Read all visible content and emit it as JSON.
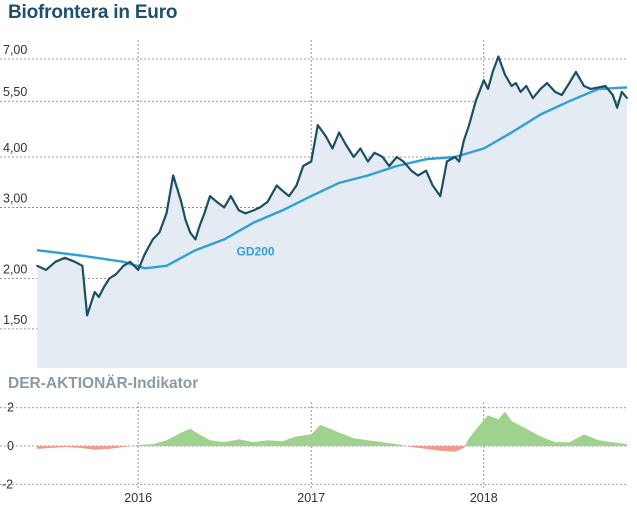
{
  "chart_data": [
    {
      "type": "line",
      "title": "Biofrontera in Euro",
      "y_scale": "log",
      "ylim": [
        1.2,
        7.8
      ],
      "y_ticks": [
        "7,00",
        "5,50",
        "4,00",
        "3,00",
        "2,00",
        "1,50"
      ],
      "y_tick_values": [
        7.0,
        5.5,
        4.0,
        3.0,
        2.0,
        1.5
      ],
      "x_ticks": [
        "2016",
        "2017",
        "2018"
      ],
      "grid": true,
      "series": [
        {
          "name": "price",
          "color": "#1b4f63",
          "x": [
            "2015-06-01",
            "2015-06-20",
            "2015-07-10",
            "2015-07-30",
            "2015-08-20",
            "2015-09-05",
            "2015-09-15",
            "2015-10-01",
            "2015-10-10",
            "2015-10-20",
            "2015-11-01",
            "2015-11-15",
            "2015-12-01",
            "2015-12-15",
            "2016-01-01",
            "2016-01-15",
            "2016-02-01",
            "2016-02-15",
            "2016-03-01",
            "2016-03-15",
            "2016-04-01",
            "2016-04-10",
            "2016-04-20",
            "2016-05-01",
            "2016-05-10",
            "2016-05-20",
            "2016-06-01",
            "2016-06-15",
            "2016-07-01",
            "2016-07-15",
            "2016-08-01",
            "2016-08-15",
            "2016-09-01",
            "2016-09-15",
            "2016-10-01",
            "2016-10-20",
            "2016-11-01",
            "2016-11-15",
            "2016-12-01",
            "2016-12-15",
            "2017-01-01",
            "2017-01-15",
            "2017-02-01",
            "2017-02-15",
            "2017-03-01",
            "2017-03-15",
            "2017-04-01",
            "2017-04-15",
            "2017-05-01",
            "2017-05-15",
            "2017-06-01",
            "2017-06-15",
            "2017-07-01",
            "2017-07-15",
            "2017-08-01",
            "2017-08-15",
            "2017-09-01",
            "2017-09-15",
            "2017-10-01",
            "2017-10-15",
            "2017-11-01",
            "2017-11-10",
            "2017-11-20",
            "2017-12-01",
            "2017-12-15",
            "2018-01-01",
            "2018-01-10",
            "2018-01-20",
            "2018-02-01",
            "2018-02-15",
            "2018-03-01",
            "2018-03-10",
            "2018-03-20",
            "2018-04-01",
            "2018-04-15",
            "2018-05-01",
            "2018-05-15",
            "2018-06-01",
            "2018-06-15",
            "2018-07-01",
            "2018-07-15",
            "2018-08-01",
            "2018-08-15",
            "2018-09-01",
            "2018-09-15",
            "2018-10-01",
            "2018-10-10",
            "2018-10-20",
            "2018-10-31"
          ],
          "values": [
            2.15,
            2.1,
            2.2,
            2.25,
            2.2,
            2.15,
            1.62,
            1.85,
            1.8,
            1.9,
            2.0,
            2.05,
            2.15,
            2.2,
            2.1,
            2.3,
            2.5,
            2.6,
            2.9,
            3.6,
            3.1,
            2.8,
            2.6,
            2.5,
            2.7,
            2.9,
            3.2,
            3.1,
            3.0,
            3.2,
            2.95,
            2.9,
            2.95,
            3.0,
            3.1,
            3.4,
            3.3,
            3.2,
            3.4,
            3.8,
            3.9,
            4.8,
            4.5,
            4.2,
            4.6,
            4.3,
            4.0,
            4.2,
            3.9,
            4.1,
            4.0,
            3.8,
            4.0,
            3.9,
            3.7,
            3.6,
            3.7,
            3.4,
            3.2,
            3.9,
            4.0,
            3.9,
            4.4,
            4.8,
            5.5,
            6.2,
            5.9,
            6.5,
            7.1,
            6.4,
            6.0,
            6.1,
            5.8,
            6.0,
            5.6,
            5.9,
            6.1,
            5.8,
            5.7,
            6.1,
            6.5,
            6.0,
            5.9,
            5.95,
            6.0,
            5.7,
            5.3,
            5.8,
            5.6
          ]
        },
        {
          "name": "GD200",
          "color": "#2fa0d6",
          "x": [
            "2015-06-01",
            "2015-09-01",
            "2015-12-01",
            "2016-01-15",
            "2016-03-01",
            "2016-05-01",
            "2016-07-01",
            "2016-09-01",
            "2016-11-01",
            "2017-01-01",
            "2017-03-01",
            "2017-05-01",
            "2017-07-01",
            "2017-09-01",
            "2017-11-01",
            "2018-01-01",
            "2018-03-01",
            "2018-05-01",
            "2018-07-01",
            "2018-09-01",
            "2018-10-31"
          ],
          "values": [
            2.35,
            2.28,
            2.2,
            2.12,
            2.15,
            2.35,
            2.5,
            2.75,
            2.95,
            3.2,
            3.45,
            3.6,
            3.8,
            3.95,
            4.0,
            4.2,
            4.6,
            5.1,
            5.5,
            5.9,
            5.95
          ]
        }
      ],
      "annotations": [
        {
          "text": "GD200"
        }
      ]
    },
    {
      "type": "area",
      "title": "DER-AKTIONÄR-Indikator",
      "ylim": [
        -2.3,
        2.3
      ],
      "y_ticks": [
        "2",
        "0",
        "-2"
      ],
      "y_tick_values": [
        2,
        0,
        -2
      ],
      "x_ticks": [
        "2016",
        "2017",
        "2018"
      ],
      "grid": true,
      "positive_color": "#9fd28c",
      "negative_color": "#ef9a8a",
      "series": [
        {
          "name": "indicator",
          "x": [
            "2015-06-01",
            "2015-07-01",
            "2015-08-01",
            "2015-09-01",
            "2015-10-01",
            "2015-11-01",
            "2015-12-01",
            "2016-01-01",
            "2016-02-01",
            "2016-03-01",
            "2016-04-01",
            "2016-04-20",
            "2016-05-10",
            "2016-06-01",
            "2016-07-01",
            "2016-08-01",
            "2016-09-01",
            "2016-10-01",
            "2016-11-01",
            "2016-12-01",
            "2017-01-01",
            "2017-01-20",
            "2017-02-10",
            "2017-03-01",
            "2017-04-01",
            "2017-05-01",
            "2017-06-01",
            "2017-07-01",
            "2017-08-01",
            "2017-09-01",
            "2017-10-01",
            "2017-11-01",
            "2017-11-20",
            "2017-12-01",
            "2017-12-20",
            "2018-01-10",
            "2018-02-01",
            "2018-02-15",
            "2018-03-01",
            "2018-04-01",
            "2018-05-01",
            "2018-06-01",
            "2018-07-01",
            "2018-08-01",
            "2018-09-01",
            "2018-10-01",
            "2018-10-31"
          ],
          "values": [
            -0.15,
            -0.1,
            -0.05,
            -0.1,
            -0.2,
            -0.15,
            -0.05,
            0.05,
            0.1,
            0.3,
            0.7,
            0.9,
            0.6,
            0.3,
            0.2,
            0.35,
            0.2,
            0.3,
            0.25,
            0.5,
            0.6,
            1.1,
            0.9,
            0.7,
            0.4,
            0.3,
            0.2,
            0.1,
            -0.05,
            -0.15,
            -0.25,
            -0.3,
            -0.1,
            0.4,
            1.0,
            1.6,
            1.4,
            1.8,
            1.3,
            0.9,
            0.5,
            0.2,
            0.2,
            0.6,
            0.3,
            0.2,
            0.1
          ]
        }
      ]
    }
  ]
}
